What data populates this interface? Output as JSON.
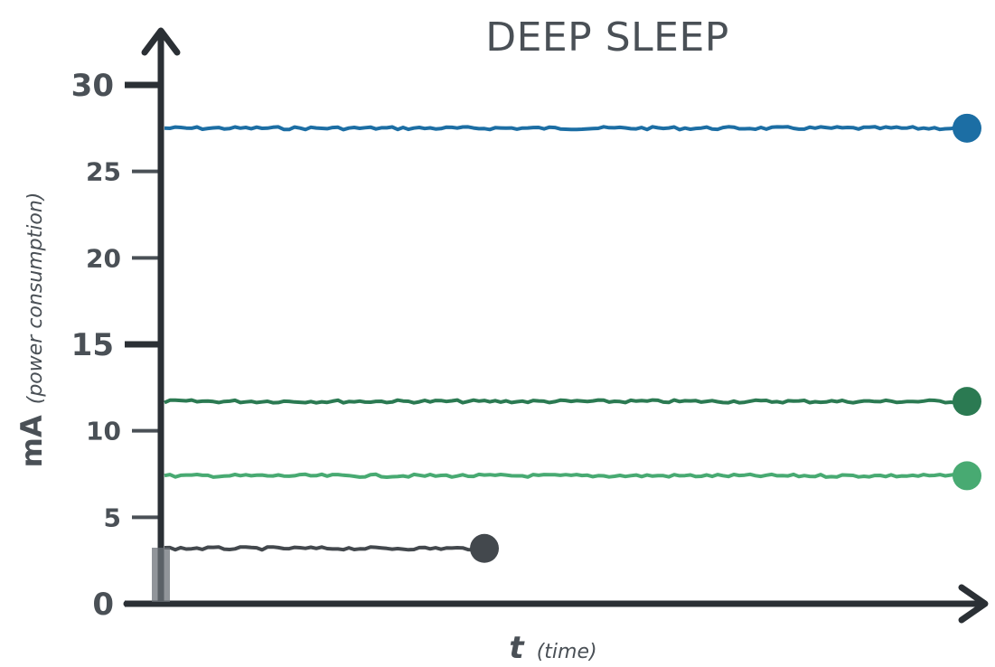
{
  "chart_data": {
    "type": "line",
    "title": "DEEP SLEEP",
    "ylabel_main": "mA",
    "ylabel_sub": "(power consumption)",
    "xlabel_main": "t",
    "xlabel_sub": "(time)",
    "ylim": [
      0,
      30
    ],
    "yticks": [
      {
        "value": 30,
        "label": "30",
        "major": true
      },
      {
        "value": 25,
        "label": "25",
        "major": false
      },
      {
        "value": 20,
        "label": "20",
        "major": false
      },
      {
        "value": 15,
        "label": "15",
        "major": true
      },
      {
        "value": 10,
        "label": "10",
        "major": false
      },
      {
        "value": 5,
        "label": "5",
        "major": false
      },
      {
        "value": 0,
        "label": "0",
        "major": true
      }
    ],
    "xlim": [
      0,
      100
    ],
    "series": [
      {
        "key": "blue",
        "color": "#1c6ea4",
        "y": 27.5,
        "x_end": 100,
        "end_marker": true
      },
      {
        "key": "dark-green",
        "color": "#2b7a52",
        "y": 11.7,
        "x_end": 100,
        "end_marker": true
      },
      {
        "key": "light-green",
        "color": "#48aa72",
        "y": 7.4,
        "x_end": 100,
        "end_marker": true
      },
      {
        "key": "dark-gray",
        "color": "#43484d",
        "y": 3.2,
        "x_end": 40,
        "end_marker": true
      }
    ],
    "grid": false,
    "colors": {
      "axis": "#2b3035",
      "text": "#4a5056"
    }
  }
}
